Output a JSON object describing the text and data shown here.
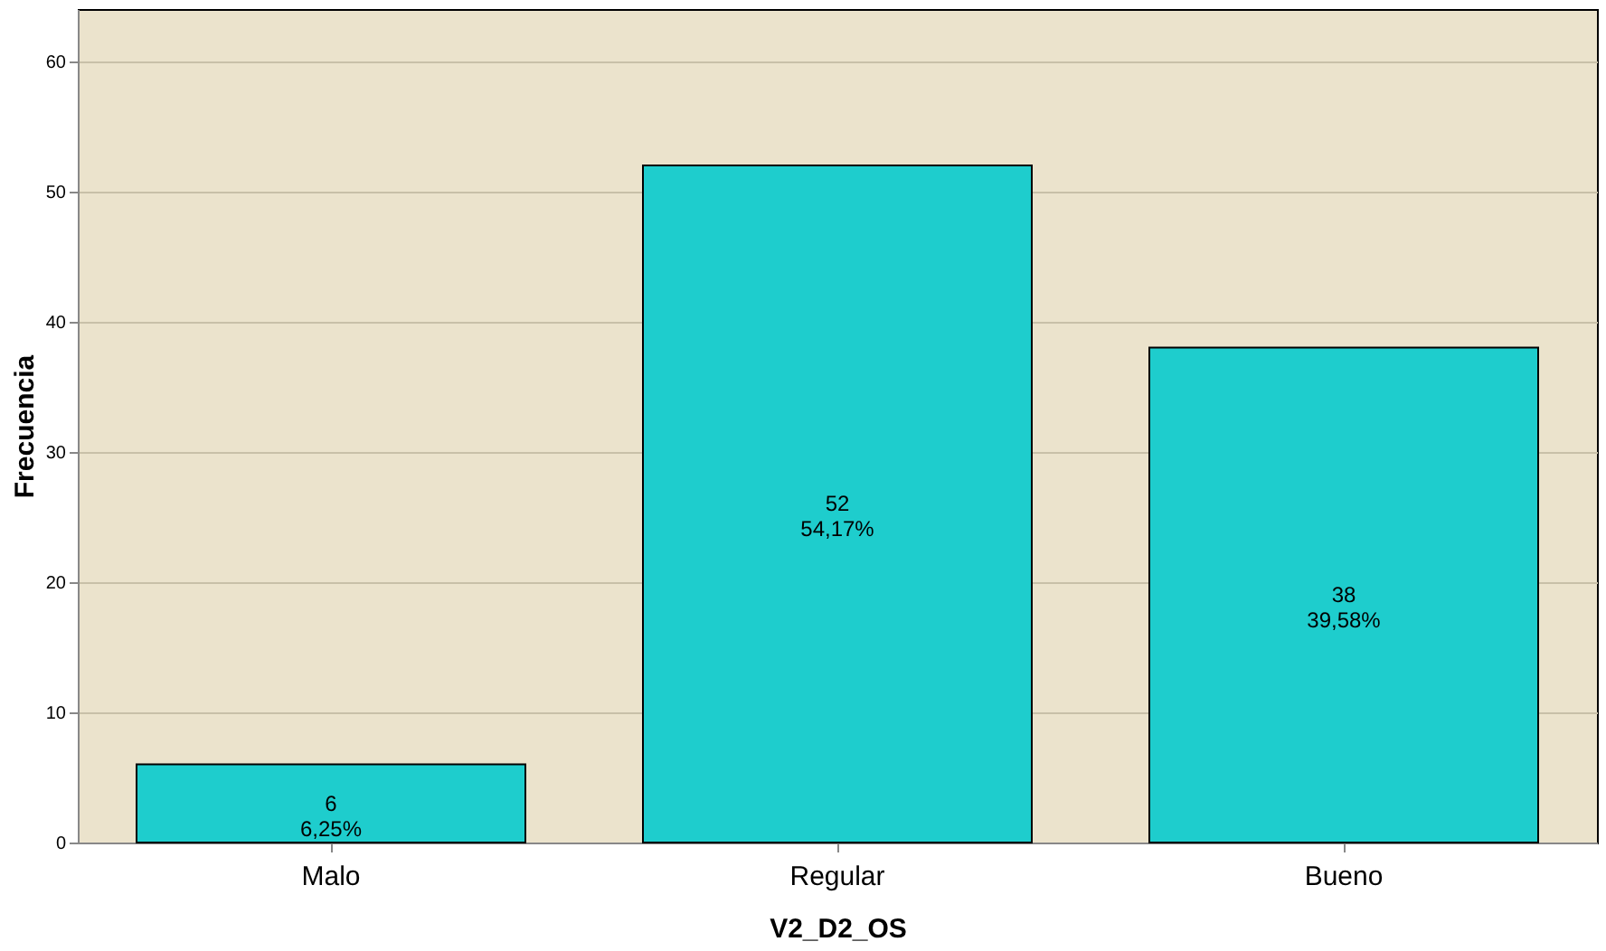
{
  "chart_data": {
    "type": "bar",
    "xlabel": "V2_D2_OS",
    "ylabel": "Frecuencia",
    "categories": [
      "Malo",
      "Regular",
      "Bueno"
    ],
    "values": [
      6,
      52,
      38
    ],
    "value_labels": [
      "6\n6,25%",
      "52\n54,17%",
      "38\n39,58%"
    ],
    "color": "#1ecdcd",
    "ylim": [
      0,
      64
    ],
    "yticks": [
      0,
      10,
      20,
      30,
      40,
      50,
      60
    ],
    "grid": "y"
  }
}
